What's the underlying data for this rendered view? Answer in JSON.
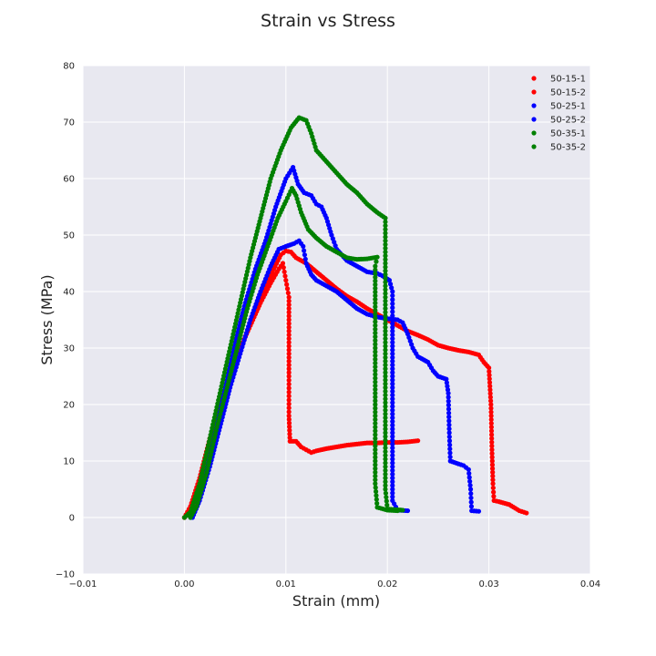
{
  "chart_data": {
    "type": "scatter",
    "title": "Strain vs Stress",
    "xlabel": "Strain (mm)",
    "ylabel": "Stress (MPa)",
    "xlim": [
      -0.01,
      0.04
    ],
    "ylim": [
      -10,
      80
    ],
    "xticks": [
      -0.01,
      0.0,
      0.01,
      0.02,
      0.03,
      0.04
    ],
    "xtick_labels": [
      "−0.01",
      "0.00",
      "0.01",
      "0.02",
      "0.03",
      "0.04"
    ],
    "yticks": [
      -10,
      0,
      10,
      20,
      30,
      40,
      50,
      60,
      70,
      80
    ],
    "ytick_labels": [
      "−10",
      "0",
      "10",
      "20",
      "30",
      "40",
      "50",
      "60",
      "70",
      "80"
    ],
    "grid": true,
    "legend_position": "top-right",
    "colors": {
      "plot_bg": "#e8e8f0",
      "grid": "#ffffff",
      "red": "#ff0000",
      "blue": "#0000ff",
      "green": "#008000"
    },
    "series": [
      {
        "name": "50-15-1",
        "color": "#ff0000",
        "points": [
          [
            0.0,
            0
          ],
          [
            0.0006,
            2
          ],
          [
            0.0015,
            7
          ],
          [
            0.0025,
            14
          ],
          [
            0.0035,
            20
          ],
          [
            0.0045,
            25
          ],
          [
            0.0055,
            30
          ],
          [
            0.0065,
            34
          ],
          [
            0.0075,
            38
          ],
          [
            0.0085,
            41.5
          ],
          [
            0.0093,
            44
          ],
          [
            0.0097,
            45
          ],
          [
            0.01,
            42
          ],
          [
            0.0103,
            39
          ],
          [
            0.0103,
            33
          ],
          [
            0.0103,
            25
          ],
          [
            0.0103,
            18
          ],
          [
            0.0104,
            13.5
          ],
          [
            0.011,
            13.5
          ],
          [
            0.0115,
            12.5
          ],
          [
            0.012,
            12
          ],
          [
            0.0125,
            11.5
          ],
          [
            0.013,
            11.8
          ],
          [
            0.014,
            12.2
          ],
          [
            0.015,
            12.5
          ],
          [
            0.016,
            12.8
          ],
          [
            0.017,
            13
          ],
          [
            0.018,
            13.2
          ],
          [
            0.019,
            13.2
          ],
          [
            0.02,
            13.3
          ],
          [
            0.021,
            13.3
          ],
          [
            0.022,
            13.4
          ],
          [
            0.023,
            13.6
          ]
        ]
      },
      {
        "name": "50-15-2",
        "color": "#ff0000",
        "points": [
          [
            0.0,
            0
          ],
          [
            0.0008,
            2
          ],
          [
            0.0018,
            8
          ],
          [
            0.0028,
            14
          ],
          [
            0.0038,
            20
          ],
          [
            0.0048,
            26
          ],
          [
            0.0058,
            31
          ],
          [
            0.0068,
            36
          ],
          [
            0.0078,
            40
          ],
          [
            0.0088,
            44
          ],
          [
            0.0095,
            46.5
          ],
          [
            0.01,
            47.2
          ],
          [
            0.0105,
            47
          ],
          [
            0.011,
            46
          ],
          [
            0.012,
            45
          ],
          [
            0.013,
            43.5
          ],
          [
            0.014,
            42
          ],
          [
            0.015,
            40.5
          ],
          [
            0.016,
            39.2
          ],
          [
            0.017,
            38.2
          ],
          [
            0.018,
            37
          ],
          [
            0.019,
            36
          ],
          [
            0.02,
            35
          ],
          [
            0.021,
            34
          ],
          [
            0.022,
            33
          ],
          [
            0.023,
            32.3
          ],
          [
            0.024,
            31.5
          ],
          [
            0.025,
            30.5
          ],
          [
            0.026,
            30
          ],
          [
            0.027,
            29.6
          ],
          [
            0.028,
            29.3
          ],
          [
            0.029,
            28.8
          ],
          [
            0.0295,
            27.5
          ],
          [
            0.03,
            26.5
          ],
          [
            0.0302,
            20
          ],
          [
            0.0303,
            12
          ],
          [
            0.0304,
            6
          ],
          [
            0.0305,
            3
          ],
          [
            0.031,
            2.8
          ],
          [
            0.032,
            2.3
          ],
          [
            0.033,
            1.2
          ],
          [
            0.0337,
            0.8
          ]
        ]
      },
      {
        "name": "50-25-1",
        "color": "#0000ff",
        "points": [
          [
            0.0006,
            0
          ],
          [
            0.0012,
            2
          ],
          [
            0.002,
            7
          ],
          [
            0.003,
            15
          ],
          [
            0.004,
            23
          ],
          [
            0.005,
            31
          ],
          [
            0.006,
            38
          ],
          [
            0.007,
            44
          ],
          [
            0.008,
            49
          ],
          [
            0.009,
            55
          ],
          [
            0.01,
            60
          ],
          [
            0.0107,
            62
          ],
          [
            0.0112,
            59
          ],
          [
            0.0118,
            57.5
          ],
          [
            0.0125,
            57
          ],
          [
            0.013,
            55.5
          ],
          [
            0.0135,
            55
          ],
          [
            0.014,
            53
          ],
          [
            0.0145,
            50
          ],
          [
            0.015,
            47.5
          ],
          [
            0.016,
            45.5
          ],
          [
            0.017,
            44.5
          ],
          [
            0.018,
            43.5
          ],
          [
            0.019,
            43.2
          ],
          [
            0.0195,
            42.8
          ],
          [
            0.0202,
            42
          ],
          [
            0.0205,
            40
          ],
          [
            0.0205,
            35
          ],
          [
            0.0205,
            25
          ],
          [
            0.0205,
            15
          ],
          [
            0.0205,
            7
          ],
          [
            0.0205,
            3
          ],
          [
            0.021,
            1.3
          ],
          [
            0.022,
            1.2
          ]
        ]
      },
      {
        "name": "50-25-2",
        "color": "#0000ff",
        "points": [
          [
            0.0008,
            0
          ],
          [
            0.0015,
            3
          ],
          [
            0.0025,
            9
          ],
          [
            0.0035,
            16
          ],
          [
            0.0045,
            23
          ],
          [
            0.0055,
            29
          ],
          [
            0.0065,
            35
          ],
          [
            0.0075,
            40
          ],
          [
            0.0085,
            44.5
          ],
          [
            0.0093,
            47.5
          ],
          [
            0.01,
            48
          ],
          [
            0.0108,
            48.5
          ],
          [
            0.0113,
            49
          ],
          [
            0.0117,
            48
          ],
          [
            0.012,
            45
          ],
          [
            0.0125,
            43
          ],
          [
            0.013,
            42
          ],
          [
            0.014,
            41
          ],
          [
            0.015,
            40
          ],
          [
            0.016,
            38.5
          ],
          [
            0.017,
            37
          ],
          [
            0.018,
            36
          ],
          [
            0.019,
            35.5
          ],
          [
            0.02,
            35.2
          ],
          [
            0.021,
            35
          ],
          [
            0.0215,
            34.5
          ],
          [
            0.022,
            32.5
          ],
          [
            0.0225,
            30
          ],
          [
            0.023,
            28.5
          ],
          [
            0.024,
            27.5
          ],
          [
            0.0245,
            26
          ],
          [
            0.025,
            25
          ],
          [
            0.0258,
            24.5
          ],
          [
            0.026,
            22
          ],
          [
            0.0261,
            15
          ],
          [
            0.0262,
            10
          ],
          [
            0.027,
            9.5
          ],
          [
            0.0275,
            9.2
          ],
          [
            0.028,
            8.5
          ],
          [
            0.0282,
            5
          ],
          [
            0.0283,
            1.2
          ],
          [
            0.029,
            1.1
          ]
        ]
      },
      {
        "name": "50-35-1",
        "color": "#008000",
        "points": [
          [
            0.0,
            0
          ],
          [
            0.0006,
            1
          ],
          [
            0.0015,
            6
          ],
          [
            0.0025,
            14
          ],
          [
            0.0035,
            22
          ],
          [
            0.0045,
            30
          ],
          [
            0.0055,
            38
          ],
          [
            0.0065,
            46
          ],
          [
            0.0075,
            53
          ],
          [
            0.0085,
            60
          ],
          [
            0.0095,
            65
          ],
          [
            0.0105,
            69
          ],
          [
            0.0113,
            70.8
          ],
          [
            0.012,
            70.3
          ],
          [
            0.0125,
            68
          ],
          [
            0.013,
            65
          ],
          [
            0.014,
            63
          ],
          [
            0.015,
            61
          ],
          [
            0.016,
            59
          ],
          [
            0.017,
            57.5
          ],
          [
            0.018,
            55.5
          ],
          [
            0.019,
            54
          ],
          [
            0.0198,
            53
          ],
          [
            0.0198,
            45
          ],
          [
            0.0198,
            35
          ],
          [
            0.0198,
            25
          ],
          [
            0.0198,
            15
          ],
          [
            0.0198,
            5
          ],
          [
            0.02,
            1.5
          ],
          [
            0.0215,
            1.3
          ]
        ]
      },
      {
        "name": "50-35-2",
        "color": "#008000",
        "points": [
          [
            0.0006,
            0
          ],
          [
            0.0012,
            2
          ],
          [
            0.0022,
            8
          ],
          [
            0.0032,
            16
          ],
          [
            0.0042,
            23
          ],
          [
            0.0052,
            30
          ],
          [
            0.0062,
            37
          ],
          [
            0.0072,
            43
          ],
          [
            0.0082,
            48
          ],
          [
            0.0092,
            53
          ],
          [
            0.01,
            56
          ],
          [
            0.0106,
            58.3
          ],
          [
            0.011,
            57
          ],
          [
            0.0115,
            54
          ],
          [
            0.0122,
            51
          ],
          [
            0.013,
            49.5
          ],
          [
            0.014,
            48
          ],
          [
            0.015,
            47
          ],
          [
            0.016,
            46
          ],
          [
            0.017,
            45.7
          ],
          [
            0.018,
            45.8
          ],
          [
            0.019,
            46.1
          ],
          [
            0.0188,
            44.5
          ],
          [
            0.0188,
            36
          ],
          [
            0.0188,
            26
          ],
          [
            0.0188,
            16
          ],
          [
            0.0188,
            6
          ],
          [
            0.019,
            1.8
          ],
          [
            0.02,
            1.3
          ],
          [
            0.021,
            1.2
          ]
        ]
      }
    ]
  }
}
